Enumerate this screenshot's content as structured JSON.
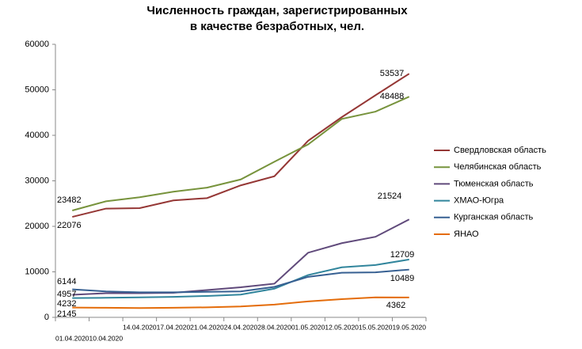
{
  "chart_data": {
    "type": "line",
    "title": [
      "Численность граждан, зарегистрированных",
      "в качестве безработных, чел."
    ],
    "categories": [
      "01.04.2020",
      "10.04.2020",
      "14.04.2020",
      "17.04.2020",
      "21.04.2020",
      "24.04.2020",
      "28.04.2020",
      "01.05.2020",
      "12.05.2020",
      "15.05.2020",
      "19.05.2020"
    ],
    "series": [
      {
        "name": "Свердловская область",
        "color": "#953735",
        "values": [
          22076,
          23900,
          24000,
          25700,
          26200,
          29000,
          31000,
          38800,
          44000,
          48800,
          53537
        ]
      },
      {
        "name": "Челябинская область",
        "color": "#77933c",
        "values": [
          23482,
          25500,
          26400,
          27600,
          28500,
          30300,
          34200,
          38000,
          43600,
          45200,
          48488
        ]
      },
      {
        "name": "Тюменская область",
        "color": "#604a7b",
        "values": [
          4957,
          5300,
          5300,
          5400,
          6000,
          6600,
          7400,
          14200,
          16300,
          17700,
          21524
        ]
      },
      {
        "name": "ХМАО-Югра",
        "color": "#31859c",
        "values": [
          4232,
          4300,
          4400,
          4500,
          4700,
          5000,
          6300,
          9300,
          11000,
          11500,
          12709
        ]
      },
      {
        "name": "Курганская область",
        "color": "#376092",
        "values": [
          6144,
          5700,
          5500,
          5500,
          5600,
          5700,
          6700,
          8900,
          9800,
          9900,
          10489
        ]
      },
      {
        "name": "ЯНАО",
        "color": "#e46c0a",
        "values": [
          2145,
          2100,
          2050,
          2100,
          2200,
          2400,
          2800,
          3500,
          4000,
          4400,
          4362
        ]
      }
    ],
    "ylim": [
      0,
      60000
    ],
    "yticks": [
      0,
      10000,
      20000,
      30000,
      40000,
      50000,
      60000
    ],
    "grid": false,
    "legend": "right"
  }
}
